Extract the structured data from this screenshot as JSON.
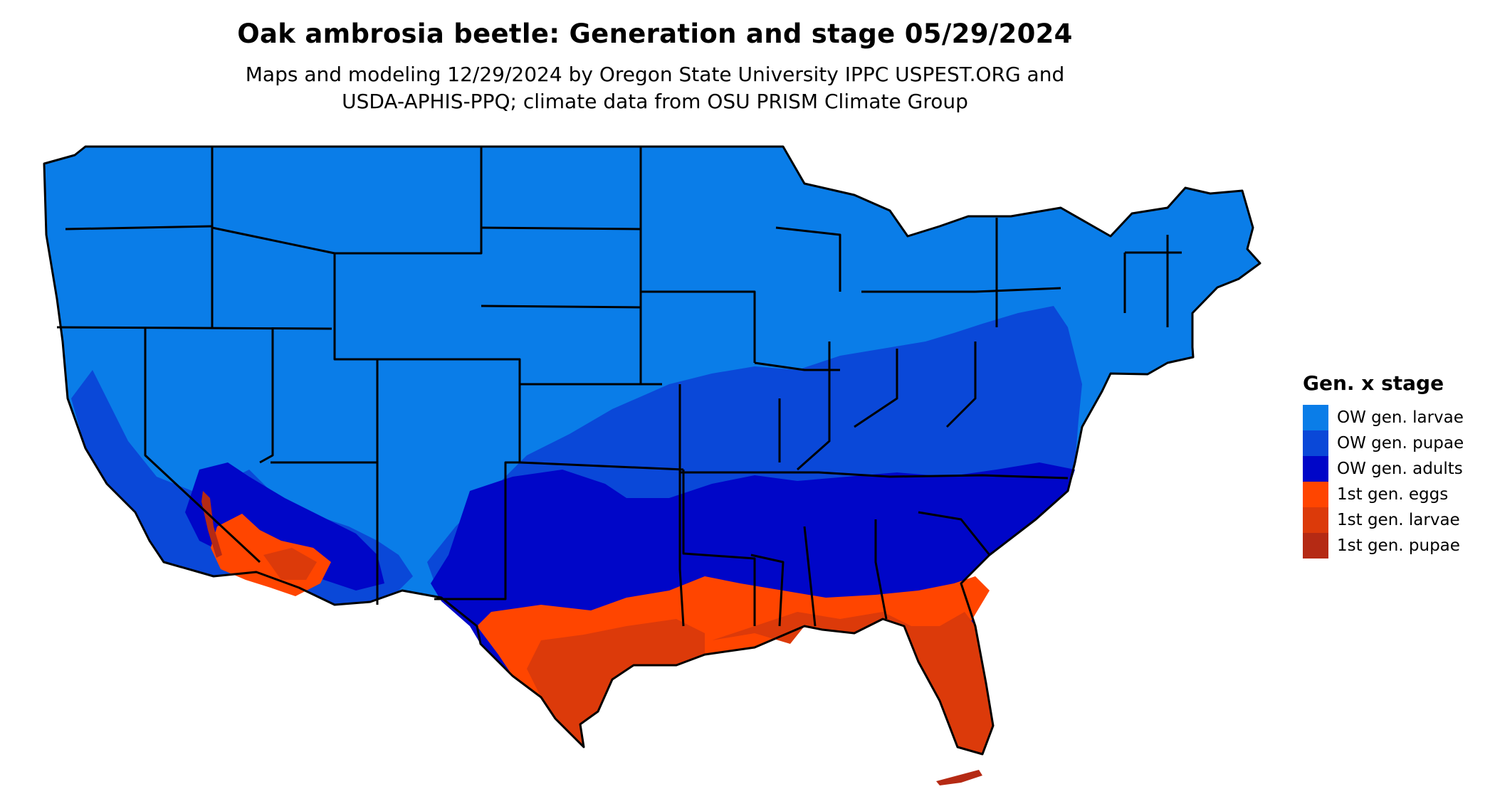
{
  "title": "Oak ambrosia beetle: Generation and stage 05/29/2024",
  "subtitle_line1": "Maps and modeling 12/29/2024 by Oregon State University IPPC USPEST.ORG and",
  "subtitle_line2": "USDA-APHIS-PPQ; climate data from OSU PRISM Climate Group",
  "legend": {
    "title": "Gen. x stage",
    "items": [
      {
        "label": "OW gen. larvae",
        "color": "#0a7de8"
      },
      {
        "label": "OW gen. pupae",
        "color": "#0a48d8"
      },
      {
        "label": "OW gen. adults",
        "color": "#0006c8"
      },
      {
        "label": "1st gen. eggs",
        "color": "#ff4500"
      },
      {
        "label": "1st gen. larvae",
        "color": "#dc3a0a"
      },
      {
        "label": "1st gen. pupae",
        "color": "#b52a14"
      }
    ]
  }
}
